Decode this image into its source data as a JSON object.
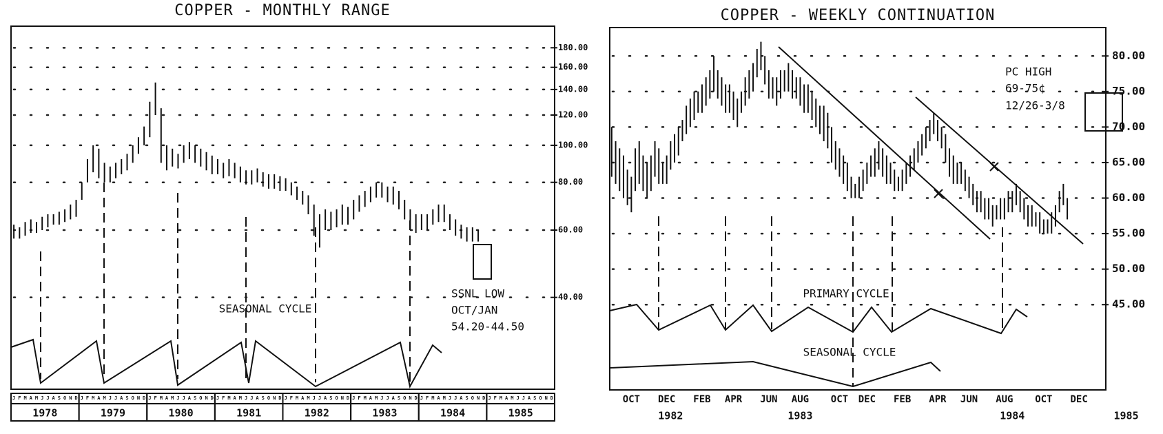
{
  "chart_data": [
    {
      "type": "range_bar",
      "title": "COPPER - MONTHLY RANGE",
      "log_scale": true,
      "grid": true,
      "ylim": [
        23,
        205
      ],
      "yticks": [
        {
          "value": 40,
          "label": "40.00"
        },
        {
          "value": 60,
          "label": "60.00"
        },
        {
          "value": 80,
          "label": "80.00"
        },
        {
          "value": 100,
          "label": "100.00"
        },
        {
          "value": 120,
          "label": "120.00"
        },
        {
          "value": 140,
          "label": "140.00"
        },
        {
          "value": 160,
          "label": "160.00"
        },
        {
          "value": 180,
          "label": "180.00"
        }
      ],
      "categories": [
        "J",
        "F",
        "M",
        "A",
        "M",
        "J",
        "J",
        "A",
        "S",
        "O",
        "N",
        "D",
        "J",
        "F",
        "M",
        "A",
        "M",
        "J",
        "J",
        "A",
        "S",
        "O",
        "N",
        "D",
        "J",
        "F",
        "M",
        "A",
        "M",
        "J",
        "J",
        "A",
        "S",
        "O",
        "N",
        "D",
        "J",
        "F",
        "M",
        "A",
        "M",
        "J",
        "J",
        "A",
        "S",
        "O",
        "N",
        "D",
        "J",
        "F",
        "M",
        "A",
        "M",
        "J",
        "J",
        "A",
        "S",
        "O",
        "N",
        "D",
        "J",
        "F",
        "M",
        "A",
        "M",
        "J",
        "J",
        "A",
        "S",
        "O",
        "N",
        "D",
        "J",
        "F",
        "M",
        "A",
        "M",
        "J",
        "J",
        "A",
        "S",
        "O",
        "N",
        "D",
        "J",
        "F",
        "M",
        "A",
        "M",
        "J",
        "J",
        "A",
        "S",
        "O",
        "N",
        "D"
      ],
      "year_categories": [
        "1978",
        null,
        null,
        null,
        null,
        null,
        null,
        null,
        null,
        null,
        null,
        null,
        "1979",
        null,
        null,
        null,
        null,
        null,
        null,
        null,
        null,
        null,
        null,
        null,
        "1980",
        null,
        null,
        null,
        null,
        null,
        null,
        null,
        null,
        null,
        null,
        null,
        "1981",
        null,
        null,
        null,
        null,
        null,
        null,
        null,
        null,
        null,
        null,
        null,
        "1982",
        null,
        null,
        null,
        null,
        null,
        null,
        null,
        null,
        null,
        null,
        null,
        "1983",
        null,
        null,
        null,
        null,
        null,
        null,
        null,
        null,
        null,
        null,
        null,
        "1984",
        null,
        null,
        null,
        null,
        null,
        null,
        null,
        null,
        null,
        null,
        null,
        "1985",
        null,
        null,
        null,
        null,
        null,
        null,
        null,
        null,
        null,
        null,
        null
      ],
      "high": [
        62,
        61,
        63,
        64,
        63,
        65,
        66,
        66,
        67,
        68,
        70,
        72,
        80,
        92,
        100,
        98,
        90,
        88,
        90,
        92,
        95,
        100,
        105,
        112,
        130,
        146,
        125,
        100,
        98,
        95,
        100,
        102,
        100,
        98,
        96,
        94,
        92,
        90,
        92,
        90,
        88,
        86,
        86,
        87,
        85,
        84,
        84,
        83,
        82,
        80,
        78,
        76,
        74,
        70,
        66,
        68,
        67,
        68,
        70,
        69,
        72,
        74,
        76,
        78,
        80,
        80,
        78,
        78,
        76,
        72,
        68,
        66,
        66,
        66,
        68,
        70,
        70,
        66,
        64,
        62,
        61,
        61,
        60,
        null,
        null,
        null,
        null,
        null,
        null,
        null,
        null,
        null,
        null,
        null,
        null,
        null
      ],
      "low": [
        57,
        57,
        58,
        59,
        59,
        60,
        61,
        62,
        62,
        63,
        64,
        65,
        72,
        80,
        85,
        82,
        80,
        80,
        82,
        84,
        86,
        90,
        95,
        100,
        105,
        120,
        90,
        86,
        88,
        87,
        90,
        92,
        90,
        88,
        86,
        84,
        84,
        82,
        83,
        82,
        80,
        79,
        79,
        80,
        78,
        77,
        77,
        76,
        76,
        74,
        72,
        70,
        66,
        58,
        54,
        60,
        60,
        61,
        62,
        62,
        64,
        67,
        69,
        71,
        73,
        73,
        71,
        70,
        68,
        64,
        60,
        59,
        60,
        60,
        62,
        63,
        63,
        60,
        58,
        57,
        56,
        56,
        56,
        null,
        null,
        null,
        null,
        null,
        null,
        null,
        null,
        null,
        null,
        null,
        null,
        null
      ],
      "annotations": [
        "SEASONAL CYCLE",
        "SSNL LOW",
        "OCT/JAN",
        "54.20-44.50"
      ]
    },
    {
      "type": "range_bar",
      "title": "COPPER - WEEKLY CONTINUATION",
      "log_scale": false,
      "grid": true,
      "ylim": [
        33,
        84
      ],
      "yticks": [
        {
          "value": 45,
          "label": "45.00"
        },
        {
          "value": 50,
          "label": "50.00"
        },
        {
          "value": 55,
          "label": "55.00"
        },
        {
          "value": 60,
          "label": "60.00"
        },
        {
          "value": 65,
          "label": "65.00"
        },
        {
          "value": 70,
          "label": "70.00"
        },
        {
          "value": 75,
          "label": "75.00"
        },
        {
          "value": 80,
          "label": "80.00"
        }
      ],
      "categories": [
        null,
        null,
        null,
        null,
        null,
        "OCT",
        null,
        null,
        null,
        null,
        null,
        null,
        null,
        null,
        "DEC",
        null,
        null,
        null,
        null,
        null,
        null,
        null,
        null,
        "FEB",
        null,
        null,
        null,
        null,
        null,
        null,
        null,
        "APR",
        null,
        null,
        null,
        null,
        null,
        null,
        null,
        null,
        "JUN",
        null,
        null,
        null,
        null,
        null,
        null,
        null,
        "AUG",
        null,
        null,
        null,
        null,
        null,
        null,
        null,
        null,
        null,
        "OCT",
        null,
        null,
        null,
        null,
        null,
        null,
        "DEC",
        null,
        null,
        null,
        null,
        null,
        null,
        null,
        null,
        "FEB",
        null,
        null,
        null,
        null,
        null,
        null,
        null,
        null,
        "APR",
        null,
        null,
        null,
        null,
        null,
        null,
        null,
        "JUN",
        null,
        null,
        null,
        null,
        null,
        null,
        null,
        null,
        "AUG",
        null,
        null,
        null,
        null,
        null,
        null,
        null,
        null,
        null,
        "OCT",
        null,
        null,
        null,
        null,
        null,
        null,
        null,
        null,
        "DEC",
        null,
        null,
        null,
        null,
        null,
        null,
        null,
        null,
        null,
        null,
        null,
        null
      ],
      "year_categories": [
        null,
        null,
        null,
        null,
        null,
        null,
        null,
        null,
        null,
        null,
        null,
        null,
        null,
        null,
        null,
        "1982",
        null,
        null,
        null,
        null,
        null,
        null,
        null,
        null,
        null,
        null,
        null,
        null,
        null,
        null,
        null,
        null,
        null,
        null,
        null,
        null,
        null,
        null,
        null,
        null,
        null,
        null,
        null,
        null,
        null,
        null,
        null,
        null,
        "1983",
        null,
        null,
        null,
        null,
        null,
        null,
        null,
        null,
        null,
        null,
        null,
        null,
        null,
        null,
        null,
        null,
        null,
        null,
        null,
        null,
        null,
        null,
        null,
        null,
        null,
        null,
        null,
        null,
        null,
        null,
        null,
        null,
        null,
        null,
        null,
        null,
        null,
        null,
        null,
        null,
        null,
        null,
        null,
        null,
        null,
        null,
        null,
        null,
        null,
        null,
        null,
        null,
        null,
        "1984",
        null,
        null,
        null,
        null,
        null,
        null,
        null,
        null,
        null,
        null,
        null,
        null,
        null,
        null,
        null,
        null,
        null,
        null,
        null,
        null,
        null,
        null,
        null,
        null,
        null,
        null,
        null,
        null,
        "1985"
      ],
      "high": [
        70,
        68,
        67,
        66,
        64,
        63,
        67,
        68,
        66,
        65,
        66,
        68,
        67,
        65,
        66,
        68,
        69,
        70,
        71,
        73,
        74,
        75,
        75,
        76,
        77,
        78,
        80,
        78,
        77,
        76,
        76,
        75,
        74,
        75,
        77,
        78,
        79,
        81,
        82,
        80,
        78,
        77,
        77,
        78,
        78,
        79,
        78,
        77,
        77,
        76,
        76,
        75,
        74,
        73,
        73,
        72,
        70,
        68,
        67,
        66,
        65,
        63,
        62,
        63,
        64,
        65,
        66,
        67,
        68,
        67,
        66,
        65,
        64,
        63,
        64,
        65,
        66,
        67,
        68,
        69,
        70,
        71,
        72,
        71,
        70,
        69,
        67,
        66,
        65,
        65,
        64,
        63,
        62,
        61,
        61,
        60,
        60,
        59,
        59,
        60,
        60,
        61,
        61,
        62,
        61,
        60,
        59,
        59,
        58,
        58,
        57,
        57,
        58,
        59,
        61,
        62,
        60,
        null,
        null,
        null,
        null,
        null,
        null,
        null,
        null,
        null,
        null,
        null,
        null,
        null,
        null,
        null
      ],
      "low": [
        63,
        62,
        61,
        60,
        59,
        58,
        61,
        62,
        61,
        60,
        61,
        63,
        62,
        62,
        62,
        64,
        65,
        66,
        68,
        69,
        70,
        71,
        72,
        72,
        73,
        74,
        75,
        74,
        73,
        72,
        72,
        71,
        70,
        72,
        73,
        74,
        75,
        77,
        78,
        76,
        74,
        74,
        73,
        74,
        75,
        75,
        74,
        74,
        73,
        72,
        72,
        71,
        70,
        69,
        68,
        67,
        65,
        64,
        63,
        62,
        61,
        60,
        60,
        60,
        61,
        62,
        63,
        63,
        64,
        63,
        62,
        62,
        61,
        61,
        61,
        62,
        63,
        64,
        65,
        66,
        67,
        68,
        69,
        68,
        67,
        65,
        63,
        62,
        62,
        62,
        61,
        60,
        59,
        58,
        58,
        57,
        57,
        56,
        57,
        57,
        57,
        58,
        58,
        59,
        58,
        57,
        56,
        56,
        56,
        55,
        55,
        55,
        55,
        56,
        58,
        59,
        57,
        null,
        null,
        null,
        null,
        null,
        null,
        null,
        null,
        null,
        null,
        null,
        null,
        null,
        null,
        null
      ],
      "annotations": [
        "PC HIGH",
        "69-75¢",
        "12/26-3/8",
        "PRIMARY CYCLE",
        "SEASONAL CYCLE"
      ]
    }
  ]
}
